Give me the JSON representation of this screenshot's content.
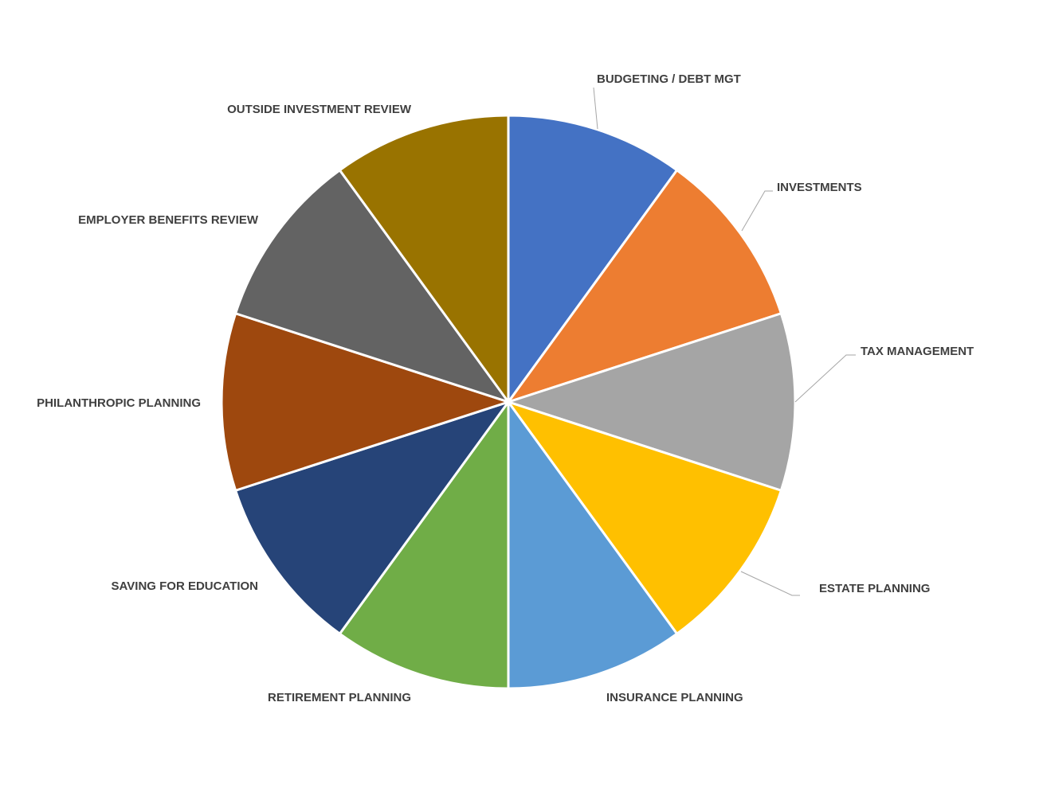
{
  "chart_data": {
    "type": "pie",
    "start_angle_deg": 0,
    "direction": "clockwise",
    "slices": [
      {
        "label": "BUDGETING / DEBT MGT",
        "value": 10,
        "color": "#4472C4"
      },
      {
        "label": "INVESTMENTS",
        "value": 10,
        "color": "#ED7D31"
      },
      {
        "label": "TAX MANAGEMENT",
        "value": 10,
        "color": "#A5A5A5"
      },
      {
        "label": "ESTATE PLANNING",
        "value": 10,
        "color": "#FFC000"
      },
      {
        "label": "INSURANCE PLANNING",
        "value": 10,
        "color": "#5B9BD5"
      },
      {
        "label": "RETIREMENT PLANNING",
        "value": 10,
        "color": "#70AD47"
      },
      {
        "label": "SAVING FOR EDUCATION",
        "value": 10,
        "color": "#264478"
      },
      {
        "label": "PHILANTHROPIC PLANNING",
        "value": 10,
        "color": "#9E480E"
      },
      {
        "label": "EMPLOYER BENEFITS REVIEW",
        "value": 10,
        "color": "#636363"
      },
      {
        "label": "OUTSIDE INVESTMENT REVIEW",
        "value": 10,
        "color": "#997300"
      }
    ]
  }
}
